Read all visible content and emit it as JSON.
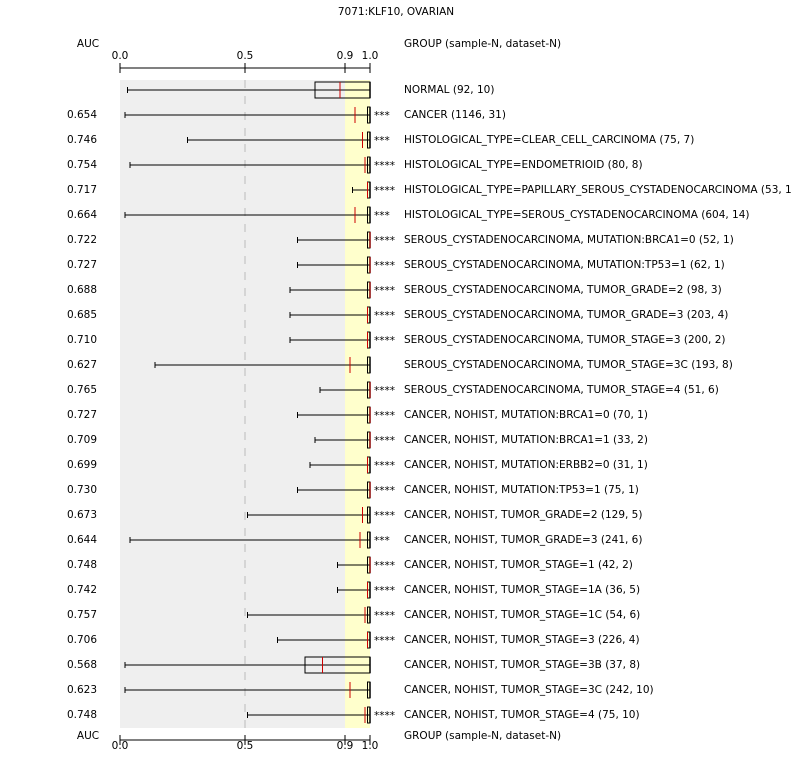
{
  "chart_data": {
    "type": "box",
    "title": "7071:KLF10, OVARIAN",
    "value_header": "AUC",
    "group_header": "GROUP (sample-N, dataset-N)",
    "xlim": [
      0,
      1
    ],
    "xticks": [
      {
        "value": 0,
        "label": "0.0"
      },
      0.5,
      0.9,
      {
        "value": 1,
        "label": "1.0"
      }
    ],
    "highlight_from": 0.9,
    "rows": [
      {
        "label": "NORMAL (92, 10)",
        "color": "#000000",
        "whisker_low": 0.03,
        "box_low": 0.78,
        "marker": 0.88,
        "box_high": 1,
        "whisker_high": 1
      },
      {
        "label": "CANCER (1146, 31)",
        "auc": "0.654",
        "stars": "***",
        "color": "#cc0000",
        "whisker_low": 0.02,
        "box_low": 0.99,
        "marker": 0.94,
        "box_high": 1,
        "whisker_high": 1
      },
      {
        "label": "HISTOLOGICAL_TYPE=CLEAR_CELL_CARCINOMA (75, 7)",
        "auc": "0.746",
        "stars": "***",
        "color": "#cc0000",
        "whisker_low": 0.27,
        "box_low": 0.99,
        "marker": 0.97,
        "box_high": 1,
        "whisker_high": 1
      },
      {
        "label": "HISTOLOGICAL_TYPE=ENDOMETRIOID (80, 8)",
        "auc": "0.754",
        "stars": "****",
        "color": "#cc0000",
        "whisker_low": 0.04,
        "box_low": 0.99,
        "marker": 0.98,
        "box_high": 1,
        "whisker_high": 1
      },
      {
        "label": "HISTOLOGICAL_TYPE=PAPILLARY_SEROUS_CYSTADENOCARCINOMA (53, 1)",
        "auc": "0.717",
        "stars": "****",
        "color": "#cc0000",
        "whisker_low": 0.93,
        "box_low": 0.99,
        "marker": 0.99,
        "box_high": 1,
        "whisker_high": 1
      },
      {
        "label": "HISTOLOGICAL_TYPE=SEROUS_CYSTADENOCARCINOMA (604, 14)",
        "auc": "0.664",
        "stars": "***",
        "color": "#cc0000",
        "whisker_low": 0.02,
        "box_low": 0.99,
        "marker": 0.94,
        "box_high": 1,
        "whisker_high": 1
      },
      {
        "label": "SEROUS_CYSTADENOCARCINOMA, MUTATION:BRCA1=0 (52, 1)",
        "auc": "0.722",
        "stars": "****",
        "color": "#cc0000",
        "whisker_low": 0.71,
        "box_low": 0.99,
        "marker": 1,
        "box_high": 1,
        "whisker_high": 1
      },
      {
        "label": "SEROUS_CYSTADENOCARCINOMA, MUTATION:TP53=1 (62, 1)",
        "auc": "0.727",
        "stars": "****",
        "color": "#cc0000",
        "whisker_low": 0.71,
        "box_low": 0.99,
        "marker": 1,
        "box_high": 1,
        "whisker_high": 1
      },
      {
        "label": "SEROUS_CYSTADENOCARCINOMA, TUMOR_GRADE=2 (98, 3)",
        "auc": "0.688",
        "stars": "****",
        "color": "#cc0000",
        "whisker_low": 0.68,
        "box_low": 0.99,
        "marker": 1,
        "box_high": 1,
        "whisker_high": 1
      },
      {
        "label": "SEROUS_CYSTADENOCARCINOMA, TUMOR_GRADE=3 (203, 4)",
        "auc": "0.685",
        "stars": "****",
        "color": "#cc0000",
        "whisker_low": 0.68,
        "box_low": 0.99,
        "marker": 0.99,
        "box_high": 1,
        "whisker_high": 1
      },
      {
        "label": "SEROUS_CYSTADENOCARCINOMA, TUMOR_STAGE=3 (200, 2)",
        "auc": "0.710",
        "stars": "****",
        "color": "#cc0000",
        "whisker_low": 0.68,
        "box_low": 0.99,
        "marker": 0.99,
        "box_high": 1,
        "whisker_high": 1
      },
      {
        "label": "SEROUS_CYSTADENOCARCINOMA, TUMOR_STAGE=3C (193, 8)",
        "auc": "0.627",
        "color": "#000000",
        "whisker_low": 0.14,
        "box_low": 0.99,
        "marker": 0.92,
        "box_high": 1,
        "whisker_high": 1
      },
      {
        "label": "SEROUS_CYSTADENOCARCINOMA, TUMOR_STAGE=4 (51, 6)",
        "auc": "0.765",
        "stars": "****",
        "color": "#cc0000",
        "whisker_low": 0.8,
        "box_low": 0.99,
        "marker": 1,
        "box_high": 1,
        "whisker_high": 1
      },
      {
        "label": "CANCER, NOHIST, MUTATION:BRCA1=0 (70, 1)",
        "auc": "0.727",
        "stars": "****",
        "color": "#cc0000",
        "whisker_low": 0.71,
        "box_low": 0.99,
        "marker": 1,
        "box_high": 1,
        "whisker_high": 1
      },
      {
        "label": "CANCER, NOHIST, MUTATION:BRCA1=1 (33, 2)",
        "auc": "0.709",
        "stars": "****",
        "color": "#cc0000",
        "whisker_low": 0.78,
        "box_low": 0.99,
        "marker": 1,
        "box_high": 1,
        "whisker_high": 1
      },
      {
        "label": "CANCER, NOHIST, MUTATION:ERBB2=0 (31, 1)",
        "auc": "0.699",
        "stars": "****",
        "color": "#cc0000",
        "whisker_low": 0.76,
        "box_low": 0.99,
        "marker": 0.99,
        "box_high": 1,
        "whisker_high": 1
      },
      {
        "label": "CANCER, NOHIST, MUTATION:TP53=1 (75, 1)",
        "auc": "0.730",
        "stars": "****",
        "color": "#cc0000",
        "whisker_low": 0.71,
        "box_low": 0.99,
        "marker": 1,
        "box_high": 1,
        "whisker_high": 1
      },
      {
        "label": "CANCER, NOHIST, TUMOR_GRADE=2 (129, 5)",
        "auc": "0.673",
        "stars": "****",
        "color": "#cc0000",
        "whisker_low": 0.51,
        "box_low": 0.99,
        "marker": 0.97,
        "box_high": 1,
        "whisker_high": 1
      },
      {
        "label": "CANCER, NOHIST, TUMOR_GRADE=3 (241, 6)",
        "auc": "0.644",
        "stars": "***",
        "color": "#cc0000",
        "whisker_low": 0.04,
        "box_low": 0.99,
        "marker": 0.96,
        "box_high": 1,
        "whisker_high": 1
      },
      {
        "label": "CANCER, NOHIST, TUMOR_STAGE=1 (42, 2)",
        "auc": "0.748",
        "stars": "****",
        "color": "#cc0000",
        "whisker_low": 0.87,
        "box_low": 0.99,
        "marker": 1,
        "box_high": 1,
        "whisker_high": 1
      },
      {
        "label": "CANCER, NOHIST, TUMOR_STAGE=1A (36, 5)",
        "auc": "0.742",
        "stars": "****",
        "color": "#cc0000",
        "whisker_low": 0.87,
        "box_low": 0.99,
        "marker": 0.99,
        "box_high": 1,
        "whisker_high": 1
      },
      {
        "label": "CANCER, NOHIST, TUMOR_STAGE=1C (54, 6)",
        "auc": "0.757",
        "stars": "****",
        "color": "#cc0000",
        "whisker_low": 0.51,
        "box_low": 0.99,
        "marker": 0.98,
        "box_high": 1,
        "whisker_high": 1
      },
      {
        "label": "CANCER, NOHIST, TUMOR_STAGE=3 (226, 4)",
        "auc": "0.706",
        "stars": "****",
        "color": "#cc0000",
        "whisker_low": 0.63,
        "box_low": 0.99,
        "marker": 0.99,
        "box_high": 1,
        "whisker_high": 1
      },
      {
        "label": "CANCER, NOHIST, TUMOR_STAGE=3B (37, 8)",
        "auc": "0.568",
        "color": "#000000",
        "whisker_low": 0.02,
        "box_low": 0.74,
        "marker": 0.81,
        "box_high": 1,
        "whisker_high": 1
      },
      {
        "label": "CANCER, NOHIST, TUMOR_STAGE=3C (242, 10)",
        "auc": "0.623",
        "color": "#000000",
        "whisker_low": 0.02,
        "box_low": 0.99,
        "marker": 0.92,
        "box_high": 1,
        "whisker_high": 1
      },
      {
        "label": "CANCER, NOHIST, TUMOR_STAGE=4 (75, 10)",
        "auc": "0.748",
        "stars": "****",
        "color": "#cc0000",
        "whisker_low": 0.51,
        "box_low": 0.99,
        "marker": 0.98,
        "box_high": 1,
        "whisker_high": 1
      }
    ]
  }
}
